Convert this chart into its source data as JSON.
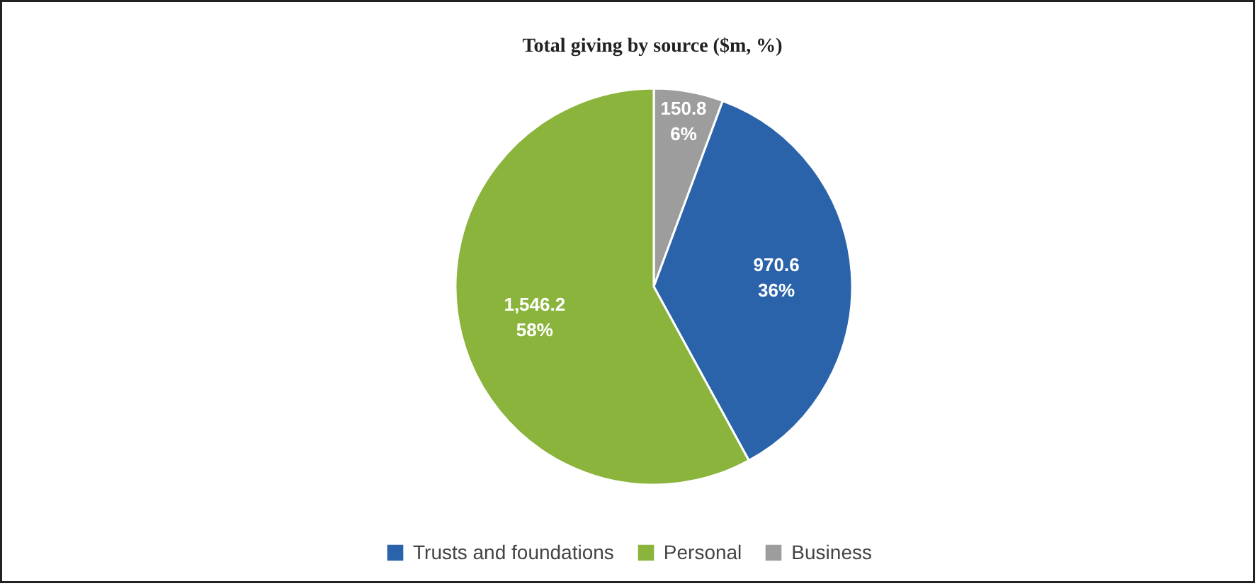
{
  "chart_data": {
    "type": "pie",
    "title": "Total giving by source ($m, %)",
    "categories": [
      "Trusts and foundations",
      "Personal",
      "Business"
    ],
    "values": [
      970.6,
      1546.2,
      150.8
    ],
    "colors": [
      "#2a63a9",
      "#8ab43c",
      "#9d9d9d"
    ],
    "value_labels": [
      "970.6\n36%",
      "1,546.2\n58%",
      "150.8\n6%"
    ],
    "legend": "bottom"
  }
}
